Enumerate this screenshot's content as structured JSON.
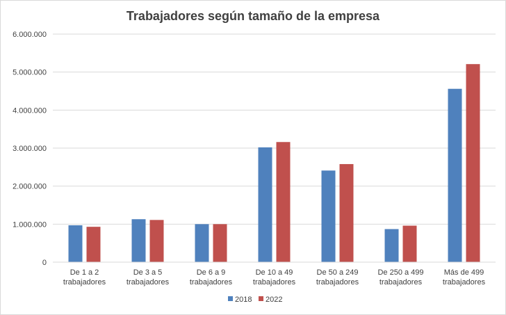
{
  "chart_data": {
    "type": "bar",
    "title": "Trabajadores según tamaño de la empresa",
    "xlabel": "",
    "ylabel": "",
    "categories": [
      [
        "De 1 a 2",
        "trabajadores"
      ],
      [
        "De 3 a 5",
        "trabajadores"
      ],
      [
        "De 6 a 9",
        "trabajadores"
      ],
      [
        "De 10 a 49",
        "trabajadores"
      ],
      [
        "De  50 a 249",
        "trabajadores"
      ],
      [
        "De 250 a 499",
        "trabajadores"
      ],
      [
        "Más de 499",
        "trabajadores"
      ]
    ],
    "series": [
      {
        "name": "2018",
        "color": "#4f81bd",
        "values": [
          970000,
          1130000,
          1000000,
          3020000,
          2410000,
          870000,
          4560000
        ]
      },
      {
        "name": "2022",
        "color": "#c0504d",
        "values": [
          930000,
          1110000,
          1000000,
          3160000,
          2580000,
          960000,
          5210000
        ]
      }
    ],
    "ylim": [
      0,
      6000000
    ],
    "yticks": [
      0,
      1000000,
      2000000,
      3000000,
      4000000,
      5000000,
      6000000
    ],
    "ytick_labels": [
      "0",
      "1.000.000",
      "2.000.000",
      "3.000.000",
      "4.000.000",
      "5.000.000",
      "6.000.000"
    ],
    "grid": true,
    "legend_position": "bottom"
  }
}
